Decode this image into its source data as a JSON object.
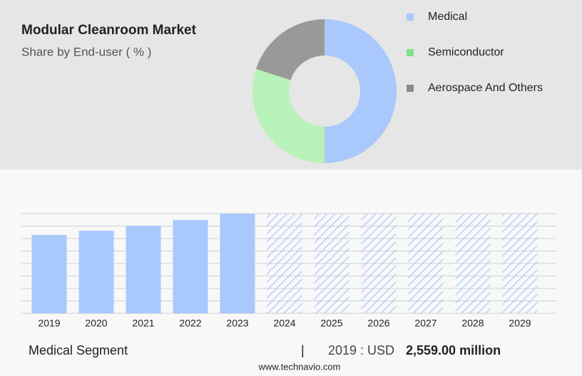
{
  "chart_data": [
    {
      "type": "pie",
      "title": "Modular Cleanroom Market",
      "subtitle": "Share by End-user ( % )",
      "categories": [
        "Medical",
        "Semiconductor",
        "Aerospace And Others"
      ],
      "values": [
        50,
        30,
        20
      ],
      "colors": [
        "#a9c8fb",
        "#b8f2b8",
        "#999999"
      ],
      "legend_colors": [
        "#a9c8fb",
        "#7fe08f",
        "#8c8c8c"
      ],
      "donut": true
    },
    {
      "type": "bar",
      "categories": [
        "2019",
        "2020",
        "2021",
        "2022",
        "2023",
        "2024",
        "2025",
        "2026",
        "2027",
        "2028",
        "2029"
      ],
      "values": [
        2559,
        2698,
        2861,
        3047,
        3257,
        null,
        null,
        null,
        null,
        null,
        null
      ],
      "color": "#a9c8fb",
      "ylim": [
        0,
        3257
      ],
      "grid": true
    }
  ],
  "footer": {
    "segment": "Medical Segment",
    "separator": "|",
    "year_label": "2019 : USD",
    "value_label": "2,559.00 million",
    "source": "www.technavio.com"
  }
}
